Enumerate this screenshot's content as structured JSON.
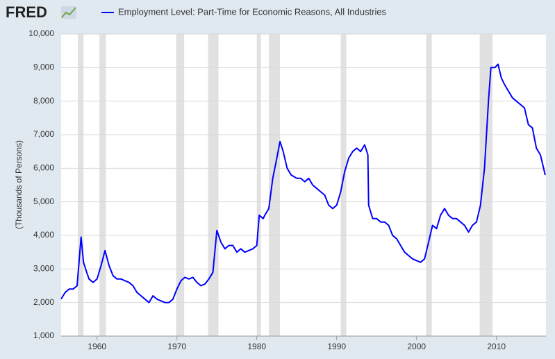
{
  "brand": "FRED",
  "chart_data": {
    "type": "line",
    "series": [
      {
        "name": "Employment Level: Part-Time for Economic Reasons, All Industries",
        "color": "#0000ff",
        "x": [
          1955.5,
          1956,
          1956.5,
          1957,
          1957.5,
          1958,
          1958.3,
          1958.7,
          1959,
          1959.5,
          1960,
          1960.5,
          1961,
          1961.5,
          1962,
          1962.5,
          1963,
          1963.5,
          1964,
          1964.5,
          1965,
          1965.5,
          1966,
          1966.5,
          1967,
          1967.5,
          1968,
          1968.5,
          1969,
          1969.5,
          1970,
          1970.5,
          1971,
          1971.5,
          1972,
          1972.5,
          1973,
          1973.5,
          1974,
          1974.5,
          1975,
          1975.5,
          1976,
          1976.5,
          1977,
          1977.5,
          1978,
          1978.5,
          1979,
          1979.5,
          1980,
          1980.3,
          1980.8,
          1981,
          1981.5,
          1982,
          1982.5,
          1982.9,
          1983.3,
          1983.8,
          1984.3,
          1985,
          1985.5,
          1986,
          1986.5,
          1987,
          1987.5,
          1988,
          1988.5,
          1989,
          1989.5,
          1990,
          1990.5,
          1991,
          1991.5,
          1992,
          1992.5,
          1993,
          1993.5,
          1993.9,
          1994,
          1994.5,
          1995,
          1995.5,
          1996,
          1996.5,
          1997,
          1997.5,
          1998,
          1998.5,
          1999,
          1999.5,
          2000,
          2000.5,
          2001,
          2001.5,
          2002,
          2002.5,
          2003,
          2003.5,
          2004,
          2004.5,
          2005,
          2005.5,
          2006,
          2006.5,
          2007,
          2007.5,
          2008,
          2008.5,
          2009,
          2009.3,
          2009.8,
          2010.2,
          2010.6,
          2011,
          2011.5,
          2012,
          2012.5,
          2013,
          2013.5,
          2014,
          2014.5,
          2015,
          2015.5,
          2016.1
        ],
        "values": [
          2100,
          2300,
          2400,
          2400,
          2500,
          3950,
          3200,
          2900,
          2700,
          2600,
          2700,
          3100,
          3550,
          3100,
          2800,
          2700,
          2700,
          2650,
          2600,
          2500,
          2300,
          2200,
          2100,
          2000,
          2200,
          2100,
          2050,
          2000,
          2000,
          2100,
          2400,
          2650,
          2750,
          2700,
          2750,
          2600,
          2500,
          2550,
          2700,
          2900,
          4150,
          3800,
          3600,
          3700,
          3700,
          3500,
          3600,
          3500,
          3550,
          3600,
          3700,
          4600,
          4500,
          4600,
          4800,
          5700,
          6300,
          6800,
          6500,
          6000,
          5800,
          5700,
          5700,
          5600,
          5700,
          5500,
          5400,
          5300,
          5200,
          4900,
          4800,
          4900,
          5300,
          5900,
          6300,
          6500,
          6600,
          6500,
          6700,
          6400,
          4900,
          4500,
          4500,
          4400,
          4400,
          4300,
          4000,
          3900,
          3700,
          3500,
          3400,
          3300,
          3250,
          3200,
          3300,
          3800,
          4300,
          4200,
          4600,
          4800,
          4600,
          4500,
          4500,
          4400,
          4300,
          4100,
          4300,
          4400,
          4900,
          6000,
          8000,
          9000,
          9000,
          9100,
          8700,
          8500,
          8300,
          8100,
          8000,
          7900,
          7800,
          7300,
          7200,
          6600,
          6400,
          5800
        ]
      }
    ],
    "recessions": [
      [
        1957.6,
        1958.3
      ],
      [
        1960.3,
        1961.1
      ],
      [
        1969.9,
        1970.9
      ],
      [
        1973.9,
        1975.2
      ],
      [
        1980.0,
        1980.5
      ],
      [
        1981.5,
        1982.9
      ],
      [
        1990.5,
        1991.2
      ],
      [
        2001.2,
        2001.9
      ],
      [
        2007.9,
        2009.5
      ]
    ],
    "ylabel": "(Thousands of Persons)",
    "xlim": [
      1955.5,
      2016.2
    ],
    "ylim": [
      1000,
      10000
    ],
    "xticks": [
      1960,
      1970,
      1980,
      1990,
      2000,
      2010
    ],
    "yticks": [
      {
        "value": 1000,
        "label": "1,000"
      },
      {
        "value": 2000,
        "label": "2,000"
      },
      {
        "value": 3000,
        "label": "3,000"
      },
      {
        "value": 4000,
        "label": "4,000"
      },
      {
        "value": 5000,
        "label": "5,000"
      },
      {
        "value": 6000,
        "label": "6,000"
      },
      {
        "value": 7000,
        "label": "7,000"
      },
      {
        "value": 8000,
        "label": "8,000"
      },
      {
        "value": 9000,
        "label": "9,000"
      },
      {
        "value": 10000,
        "label": "10,000"
      }
    ],
    "grid": true
  }
}
